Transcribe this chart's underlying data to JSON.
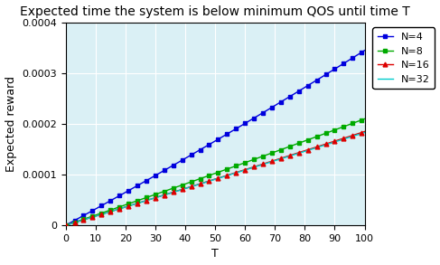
{
  "title": "Expected time the system is below minimum QOS until time T",
  "xlabel": "T",
  "ylabel": "Expected reward",
  "xlim": [
    0,
    100
  ],
  "ylim": [
    0,
    0.0004
  ],
  "yticks": [
    0,
    0.0001,
    0.0002,
    0.0003,
    0.0004
  ],
  "xticks": [
    0,
    10,
    20,
    30,
    40,
    50,
    60,
    70,
    80,
    90,
    100
  ],
  "series": [
    {
      "label": "N=4",
      "color": "#0000dd",
      "marker": "s",
      "markersize": 3.5,
      "a": 2.5e-09,
      "b": 3.2e-06
    },
    {
      "label": "N=8",
      "color": "#00aa00",
      "marker": "s",
      "markersize": 3.5,
      "a": 1e-09,
      "b": 2e-06
    },
    {
      "label": "N=16",
      "color": "#dd0000",
      "marker": "^",
      "markersize": 3.5,
      "a": 5e-10,
      "b": 1.8e-06
    },
    {
      "label": "N=32",
      "color": "#00cccc",
      "marker": "None",
      "markersize": 0,
      "a": 3e-10,
      "b": 1.8e-06
    }
  ],
  "fig_bg": "#ffffff",
  "axes_bg": "#daf0f5",
  "grid_color": "#ffffff",
  "title_fontsize": 10,
  "axis_fontsize": 9,
  "tick_fontsize": 8,
  "legend_fontsize": 8,
  "linewidth": 1.0,
  "marker_every": 3
}
